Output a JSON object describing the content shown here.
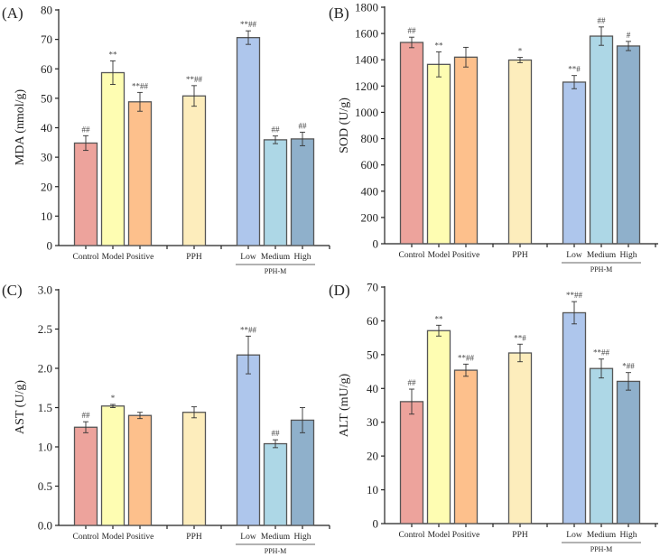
{
  "chart_data": [
    {
      "type": "bar",
      "panel_label": "(A)",
      "title": "",
      "xlabel": "",
      "ylabel": "MDA  (nmol/g)",
      "ylim": [
        0,
        80
      ],
      "yticks": [
        0,
        10,
        20,
        30,
        40,
        50,
        60,
        70,
        80
      ],
      "categories": [
        "Control",
        "Model",
        "Positive",
        "PPH",
        "Low",
        "Medium",
        "High"
      ],
      "group_label": "PPH-M",
      "grouped_categories": [
        "Low",
        "Medium",
        "High"
      ],
      "values": [
        34.8,
        58.7,
        48.8,
        50.8,
        70.6,
        35.9,
        36.2
      ],
      "errors": [
        2.5,
        4.0,
        3.2,
        3.5,
        2.3,
        1.3,
        2.3
      ],
      "significance": [
        "##",
        "**",
        "**##",
        "**##",
        "**##",
        "##",
        "##"
      ],
      "colors": [
        "#EDA39C",
        "#FEFDB2",
        "#FDC08C",
        "#FDEDBC",
        "#AEC6EC",
        "#ADD7E6",
        "#8FB0CB"
      ],
      "grid": false,
      "legend": "none"
    },
    {
      "type": "bar",
      "panel_label": "(B)",
      "title": "",
      "xlabel": "",
      "ylabel": "SOD  (U/g)",
      "ylim": [
        0,
        1800
      ],
      "yticks": [
        0,
        200,
        400,
        600,
        800,
        1000,
        1200,
        1400,
        1600,
        1800
      ],
      "categories": [
        "Control",
        "Model",
        "Positive",
        "PPH",
        "Low",
        "Medium",
        "High"
      ],
      "group_label": "PPH-M",
      "grouped_categories": [
        "Low",
        "Medium",
        "High"
      ],
      "values": [
        1532,
        1365,
        1420,
        1398,
        1230,
        1580,
        1505
      ],
      "errors": [
        40,
        95,
        75,
        20,
        50,
        70,
        35
      ],
      "significance": [
        "##",
        "**",
        "",
        "*",
        "**#",
        "##",
        "#"
      ],
      "colors": [
        "#EDA39C",
        "#FEFDB2",
        "#FDC08C",
        "#FDEDBC",
        "#AEC6EC",
        "#ADD7E6",
        "#8FB0CB"
      ],
      "grid": false,
      "legend": "none"
    },
    {
      "type": "bar",
      "panel_label": "(C)",
      "title": "",
      "xlabel": "",
      "ylabel": "AST  (U/g)",
      "ylim": [
        0,
        3.0
      ],
      "yticks": [
        0.0,
        0.5,
        1.0,
        1.5,
        2.0,
        2.5,
        3.0
      ],
      "ytick_labels": [
        "0.0",
        "0.5",
        "1.0",
        "1.5",
        "2.0",
        "2.5",
        "3.0"
      ],
      "categories": [
        "Control",
        "Model",
        "Positive",
        "PPH",
        "Low",
        "Medium",
        "High"
      ],
      "group_label": "PPH-M",
      "grouped_categories": [
        "Low",
        "Medium",
        "High"
      ],
      "values": [
        1.25,
        1.52,
        1.4,
        1.44,
        2.17,
        1.04,
        1.34
      ],
      "errors": [
        0.07,
        0.02,
        0.04,
        0.07,
        0.24,
        0.05,
        0.16
      ],
      "significance": [
        "##",
        "*",
        "",
        "",
        "**##",
        "##",
        ""
      ],
      "colors": [
        "#EDA39C",
        "#FEFDB2",
        "#FDC08C",
        "#FDEDBC",
        "#AEC6EC",
        "#ADD7E6",
        "#8FB0CB"
      ],
      "grid": false,
      "legend": "none"
    },
    {
      "type": "bar",
      "panel_label": "(D)",
      "title": "",
      "xlabel": "",
      "ylabel": "ALT  (mU/g)",
      "ylim": [
        0,
        70
      ],
      "yticks": [
        0,
        10,
        20,
        30,
        40,
        50,
        60,
        70
      ],
      "categories": [
        "Control",
        "Model",
        "Positive",
        "PPH",
        "Low",
        "Medium",
        "High"
      ],
      "group_label": "PPH-M",
      "grouped_categories": [
        "Low",
        "Medium",
        "High"
      ],
      "values": [
        36.1,
        57.1,
        45.4,
        50.5,
        62.4,
        45.9,
        42.1
      ],
      "errors": [
        3.7,
        1.6,
        1.8,
        2.6,
        3.3,
        2.8,
        2.6
      ],
      "significance": [
        "##",
        "**",
        "**##",
        "**#",
        "**##",
        "**##",
        "*##"
      ],
      "colors": [
        "#EDA39C",
        "#FEFDB2",
        "#FDC08C",
        "#FDEDBC",
        "#AEC6EC",
        "#ADD7E6",
        "#8FB0CB"
      ],
      "grid": false,
      "legend": "none"
    }
  ]
}
